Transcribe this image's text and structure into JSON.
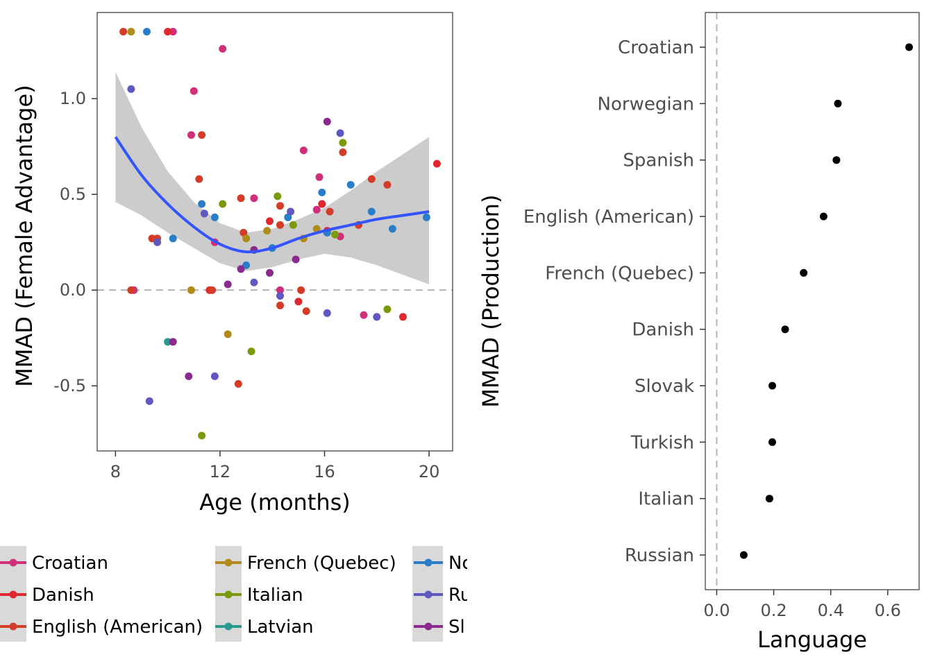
{
  "chart_data": [
    {
      "type": "scatter",
      "xlabel": "Age (months)",
      "ylabel": "MMAD (Female Advantage)",
      "xlim": [
        7.3,
        20.9
      ],
      "ylim": [
        -0.84,
        1.45
      ],
      "x_ticks": [
        8,
        12,
        16,
        20
      ],
      "y_ticks": [
        -0.5,
        0.0,
        0.5,
        1.0
      ],
      "x_tick_labels": [
        "8",
        "12",
        "16",
        "20"
      ],
      "y_tick_labels": [
        "-0.5",
        "0.0",
        "0.5",
        "1.0"
      ],
      "reference_line": 0,
      "grid": false,
      "legend_position": "bottom",
      "smooth_color": "#3355ff",
      "ribbon_color": "#cccccc",
      "smooth": {
        "x": [
          8,
          9,
          10,
          11,
          12,
          13,
          14,
          15,
          16,
          17,
          18,
          19,
          20
        ],
        "y": [
          0.8,
          0.6,
          0.45,
          0.33,
          0.24,
          0.2,
          0.22,
          0.27,
          0.31,
          0.34,
          0.37,
          0.39,
          0.41
        ],
        "lo": [
          0.46,
          0.39,
          0.3,
          0.22,
          0.14,
          0.1,
          0.12,
          0.16,
          0.19,
          0.17,
          0.13,
          0.08,
          0.03
        ],
        "hi": [
          1.14,
          0.85,
          0.62,
          0.46,
          0.35,
          0.3,
          0.32,
          0.37,
          0.43,
          0.52,
          0.62,
          0.71,
          0.8
        ]
      },
      "legend_labels": [
        "Croatian",
        "Danish",
        "English (American)",
        "French (Quebec)",
        "Italian",
        "Latvian",
        "Norwegian",
        "Russian",
        "Slovak"
      ],
      "legend_visible_labels": [
        "Croatian",
        "Danish",
        "English (American)",
        "French (Quebec)",
        "Italian",
        "Latvian",
        "No",
        "Ru",
        "Sl"
      ],
      "series": [
        {
          "name": "Croatian",
          "color": "#d0307a",
          "points": [
            [
              10.2,
              1.35
            ],
            [
              12.1,
              1.26
            ],
            [
              11.0,
              1.04
            ],
            [
              10.9,
              0.81
            ],
            [
              13.3,
              0.48
            ],
            [
              15.2,
              0.73
            ],
            [
              15.8,
              0.59
            ],
            [
              15.7,
              0.42
            ],
            [
              14.3,
              0.0
            ],
            [
              8.7,
              0.0
            ],
            [
              11.8,
              0.25
            ],
            [
              16.6,
              0.28
            ],
            [
              17.5,
              -0.13
            ],
            [
              15.9,
              0.45
            ]
          ]
        },
        {
          "name": "Danish",
          "color": "#e0282f",
          "points": [
            [
              10.0,
              1.35
            ],
            [
              11.6,
              0.0
            ],
            [
              13.9,
              0.36
            ],
            [
              15.9,
              0.45
            ],
            [
              15.0,
              -0.06
            ],
            [
              16.1,
              0.31
            ],
            [
              19.0,
              -0.14
            ],
            [
              20.3,
              0.66
            ]
          ]
        },
        {
          "name": "English (American)",
          "color": "#d43c2a",
          "points": [
            [
              8.3,
              1.35
            ],
            [
              8.6,
              0.0
            ],
            [
              9.4,
              0.27
            ],
            [
              9.6,
              0.27
            ],
            [
              11.3,
              0.81
            ],
            [
              11.2,
              0.58
            ],
            [
              11.7,
              0.0
            ],
            [
              12.8,
              0.48
            ],
            [
              12.9,
              0.3
            ],
            [
              12.7,
              -0.49
            ],
            [
              14.3,
              0.44
            ],
            [
              14.3,
              0.34
            ],
            [
              14.3,
              -0.08
            ],
            [
              15.1,
              0.0
            ],
            [
              15.3,
              -0.11
            ],
            [
              16.2,
              0.41
            ],
            [
              16.7,
              0.72
            ],
            [
              17.8,
              0.58
            ],
            [
              17.3,
              0.34
            ],
            [
              18.4,
              0.55
            ]
          ]
        },
        {
          "name": "French (Quebec)",
          "color": "#b08a1a",
          "points": [
            [
              8.6,
              1.35
            ],
            [
              10.9,
              0.0
            ],
            [
              12.3,
              -0.23
            ],
            [
              13.0,
              0.27
            ],
            [
              13.8,
              0.31
            ],
            [
              15.2,
              0.27
            ],
            [
              15.7,
              0.32
            ]
          ]
        },
        {
          "name": "Italian",
          "color": "#7a9a0a",
          "points": [
            [
              11.3,
              -0.76
            ],
            [
              12.1,
              0.45
            ],
            [
              13.2,
              -0.32
            ],
            [
              14.2,
              0.49
            ],
            [
              14.8,
              0.34
            ],
            [
              16.4,
              0.29
            ],
            [
              16.7,
              0.77
            ],
            [
              18.4,
              -0.1
            ]
          ]
        },
        {
          "name": "Latvian",
          "color": "#2b9a8e",
          "points": [
            [
              10.0,
              -0.27
            ]
          ]
        },
        {
          "name": "Norwegian",
          "color": "#2a7ec8",
          "points": [
            [
              9.2,
              1.35
            ],
            [
              11.3,
              0.45
            ],
            [
              11.8,
              0.38
            ],
            [
              13.0,
              0.13
            ],
            [
              14.0,
              0.22
            ],
            [
              14.6,
              0.38
            ],
            [
              15.9,
              0.51
            ],
            [
              16.1,
              0.3
            ],
            [
              17.0,
              0.55
            ],
            [
              17.8,
              0.41
            ],
            [
              18.6,
              0.32
            ],
            [
              19.9,
              0.38
            ],
            [
              10.2,
              0.27
            ]
          ]
        },
        {
          "name": "Russian",
          "color": "#5f58c0",
          "points": [
            [
              8.6,
              1.05
            ],
            [
              9.3,
              -0.58
            ],
            [
              9.6,
              0.25
            ],
            [
              11.4,
              0.4
            ],
            [
              11.8,
              -0.45
            ],
            [
              13.3,
              0.04
            ],
            [
              14.3,
              -0.03
            ],
            [
              14.7,
              0.41
            ],
            [
              16.1,
              -0.12
            ],
            [
              16.6,
              0.82
            ],
            [
              18.0,
              -0.14
            ]
          ]
        },
        {
          "name": "Slovak",
          "color": "#8a2a8e",
          "points": [
            [
              10.2,
              -0.27
            ],
            [
              10.8,
              -0.45
            ],
            [
              12.3,
              0.03
            ],
            [
              12.8,
              0.11
            ],
            [
              13.9,
              0.09
            ],
            [
              14.9,
              0.16
            ],
            [
              16.1,
              0.88
            ],
            [
              13.3,
              0.21
            ]
          ]
        }
      ]
    },
    {
      "type": "scatter",
      "xlabel": "Language",
      "ylabel": "MMAD (Production)",
      "xlim": [
        -0.04,
        0.71
      ],
      "x_ticks": [
        0.0,
        0.2,
        0.4,
        0.6
      ],
      "x_tick_labels": [
        "0.0",
        "0.2",
        "0.4",
        "0.6"
      ],
      "reference_line": 0,
      "grid": false,
      "categories": [
        "Croatian",
        "Norwegian",
        "Spanish",
        "English (American)",
        "French (Quebec)",
        "Danish",
        "Slovak",
        "Turkish",
        "Italian",
        "Russian"
      ],
      "values": [
        0.675,
        0.425,
        0.42,
        0.375,
        0.305,
        0.24,
        0.195,
        0.195,
        0.185,
        0.095
      ]
    }
  ]
}
